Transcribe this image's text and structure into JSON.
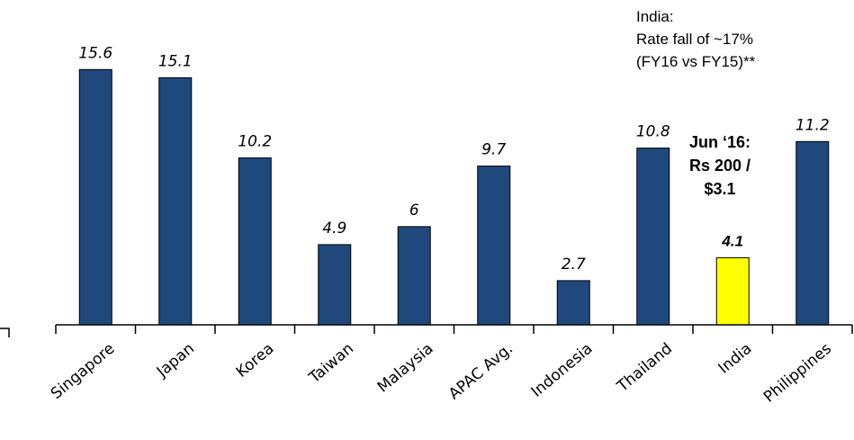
{
  "chart_data": {
    "type": "bar",
    "categories": [
      "Singapore",
      "Japan",
      "Korea",
      "Taiwan",
      "Malaysia",
      "APAC Avg.",
      "Indonesia",
      "Thailand",
      "India",
      "Philippines"
    ],
    "values": [
      15.6,
      15.1,
      10.2,
      4.9,
      6,
      9.7,
      2.7,
      10.8,
      4.1,
      11.2
    ],
    "value_labels": [
      "15.6",
      "15.1",
      "10.2",
      "4.9",
      "6",
      "9.7",
      "2.7",
      "10.8",
      "4.1",
      "11.2"
    ],
    "ylim": [
      0,
      16
    ],
    "grid": false,
    "colors": {
      "bar": "#1f497d",
      "highlight": "#ffff00",
      "outline": "#000000"
    },
    "highlight_category": "India"
  },
  "annotations": {
    "india_note": [
      "India:",
      "Rate fall of ~17%",
      "(FY16 vs FY15)**"
    ],
    "india_callout": [
      "Jun ‘16:",
      "Rs 200 /",
      "$3.1"
    ]
  }
}
